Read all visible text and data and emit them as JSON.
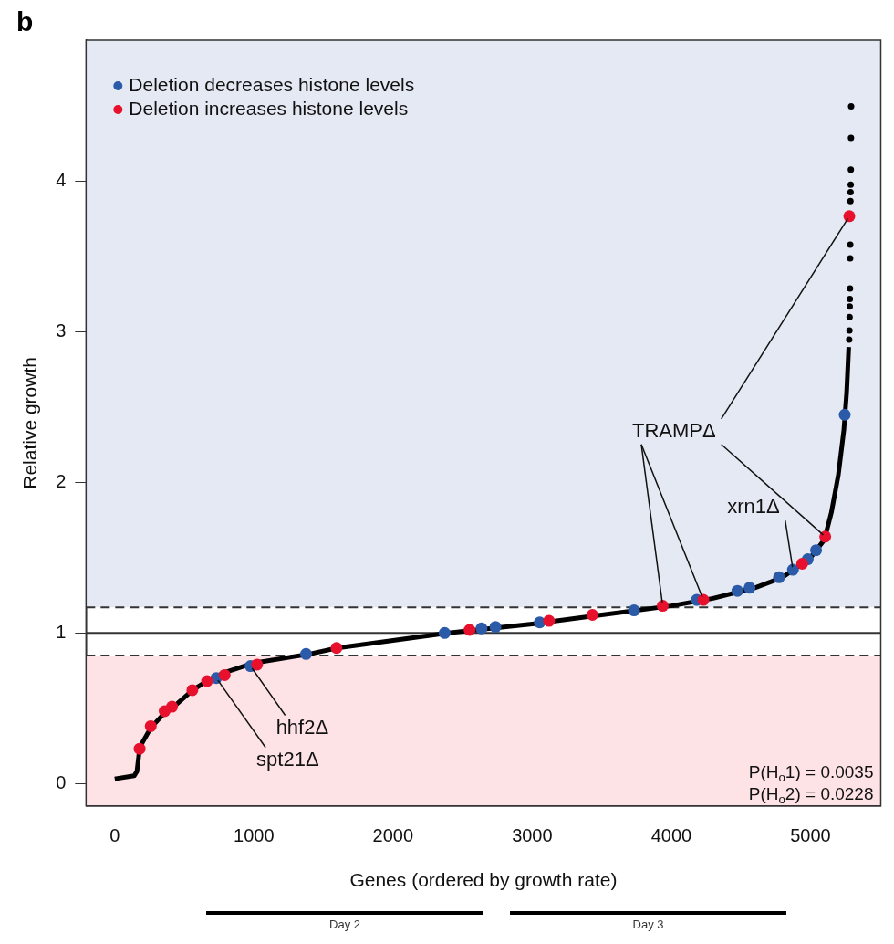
{
  "chart_data": {
    "type": "line",
    "title": "b",
    "xlabel": "Genes (ordered by growth rate)",
    "ylabel": "Relative growth",
    "xlim": [
      -206,
      5505
    ],
    "ylim": [
      -0.15,
      4.94
    ],
    "xticks": [
      0,
      1000,
      2000,
      3000,
      4000,
      5000
    ],
    "yticks": [
      0,
      1,
      2,
      3,
      4
    ],
    "grid": false,
    "legend": "top left",
    "series": [
      {
        "color": "#000000",
        "marker": "none",
        "x": [
          0,
          140,
          160,
          180,
          260,
          360,
          450,
          560,
          680,
          800,
          1000,
          1400,
          1600,
          2000,
          2400,
          3000,
          3500,
          4000,
          4300,
          4600,
          4800,
          5000,
          5100,
          5150,
          5200,
          5240,
          5260,
          5275
        ],
        "values": [
          0.03,
          0.05,
          0.08,
          0.24,
          0.37,
          0.47,
          0.53,
          0.62,
          0.69,
          0.74,
          0.8,
          0.86,
          0.9,
          0.95,
          1.0,
          1.06,
          1.12,
          1.18,
          1.23,
          1.3,
          1.37,
          1.5,
          1.62,
          1.8,
          2.05,
          2.35,
          2.6,
          2.9
        ]
      },
      {
        "type": "scatter",
        "color": "#000000",
        "marker": "circle",
        "x": [
          5278,
          5280,
          5281,
          5282,
          5283,
          5284,
          5285,
          5286,
          5287,
          5288,
          5289,
          5290,
          5291,
          5292
        ],
        "values": [
          2.95,
          3.01,
          3.1,
          3.17,
          3.22,
          3.29,
          3.49,
          3.58,
          3.87,
          3.93,
          3.98,
          4.08,
          4.29,
          4.5
        ]
      },
      {
        "type": "scatter",
        "name": "Deletion decreases histone levels",
        "color": "#2b5aa8",
        "marker": "circle",
        "x": [
          730,
          976,
          1375,
          2371,
          2636,
          2736,
          3054,
          3732,
          4183,
          4475,
          4562,
          4774,
          4874,
          4980,
          5040,
          5246
        ],
        "values": [
          0.7,
          0.78,
          0.86,
          1.0,
          1.03,
          1.04,
          1.07,
          1.15,
          1.22,
          1.28,
          1.3,
          1.37,
          1.42,
          1.49,
          1.55,
          2.45
        ]
      },
      {
        "type": "scatter",
        "name": "Deletion increases histone levels",
        "color": "#e8112d",
        "marker": "circle",
        "x": [
          179,
          259,
          359,
          412,
          558,
          664,
          790,
          1023,
          1594,
          2550,
          3121,
          3433,
          3938,
          4230,
          4940,
          5106,
          5279
        ],
        "values": [
          0.23,
          0.38,
          0.48,
          0.51,
          0.62,
          0.68,
          0.72,
          0.79,
          0.9,
          1.02,
          1.08,
          1.12,
          1.18,
          1.22,
          1.46,
          1.64,
          3.77
        ]
      }
    ],
    "bands": [
      {
        "axis": "y",
        "from": -0.15,
        "to": 0.85,
        "color": "#fde3e6"
      },
      {
        "axis": "y",
        "from": 1.17,
        "to": 4.94,
        "color": "#e5e9f3"
      }
    ],
    "ref_lines": [
      {
        "axis": "y",
        "value": 0.85,
        "line_style": "dashed",
        "color": "#333333"
      },
      {
        "axis": "y",
        "value": 1,
        "line_style": "solid",
        "color": "#333333"
      },
      {
        "axis": "y",
        "value": 1.17,
        "line_style": "dashed",
        "color": "#333333"
      }
    ],
    "annotations": [
      {
        "text": "TRAMPΔ",
        "x": 5279,
        "y": 3.77
      },
      {
        "text": "xrn1Δ",
        "x": 4874,
        "y": 1.42
      },
      {
        "text": "hhf2Δ",
        "x": 976,
        "y": 0.78
      },
      {
        "text": "spt21Δ",
        "x": 730,
        "y": 0.7
      },
      "P(H$_{o}$1) = 0.0035",
      "P(H$_{o}$2) = 0.0228",
      "Day 2",
      "Day 3"
    ]
  }
}
